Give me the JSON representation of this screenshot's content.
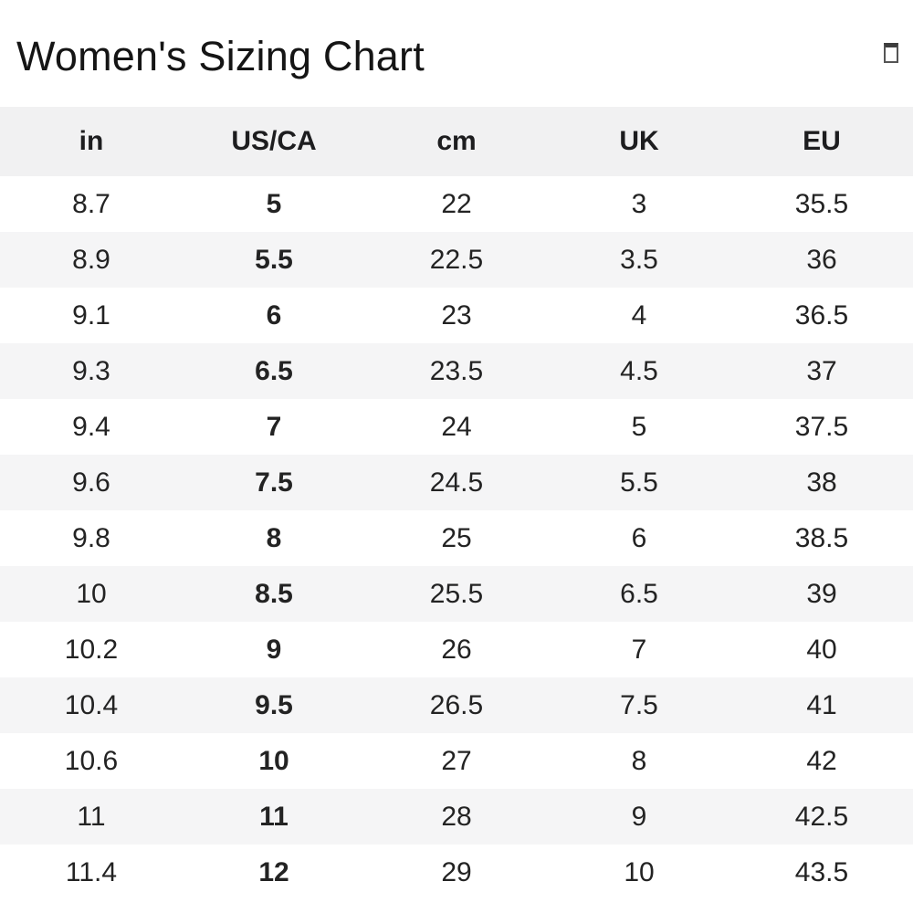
{
  "page": {
    "title": "Women's Sizing Chart"
  },
  "icons": {
    "top_right": "box-glyph-icon"
  },
  "table": {
    "headers": [
      "in",
      "US/CA",
      "cm",
      "UK",
      "EU"
    ],
    "bold_column": "US/CA",
    "rows": [
      [
        "8.7",
        "5",
        "22",
        "3",
        "35.5"
      ],
      [
        "8.9",
        "5.5",
        "22.5",
        "3.5",
        "36"
      ],
      [
        "9.1",
        "6",
        "23",
        "4",
        "36.5"
      ],
      [
        "9.3",
        "6.5",
        "23.5",
        "4.5",
        "37"
      ],
      [
        "9.4",
        "7",
        "24",
        "5",
        "37.5"
      ],
      [
        "9.6",
        "7.5",
        "24.5",
        "5.5",
        "38"
      ],
      [
        "9.8",
        "8",
        "25",
        "6",
        "38.5"
      ],
      [
        "10",
        "8.5",
        "25.5",
        "6.5",
        "39"
      ],
      [
        "10.2",
        "9",
        "26",
        "7",
        "40"
      ],
      [
        "10.4",
        "9.5",
        "26.5",
        "7.5",
        "41"
      ],
      [
        "10.6",
        "10",
        "27",
        "8",
        "42"
      ],
      [
        "11",
        "11",
        "28",
        "9",
        "42.5"
      ],
      [
        "11.4",
        "12",
        "29",
        "10",
        "43.5"
      ]
    ]
  },
  "colors": {
    "header_bg": "#f1f1f2",
    "stripe_bg": "#f5f5f6",
    "text": "#232323",
    "title": "#151515"
  }
}
